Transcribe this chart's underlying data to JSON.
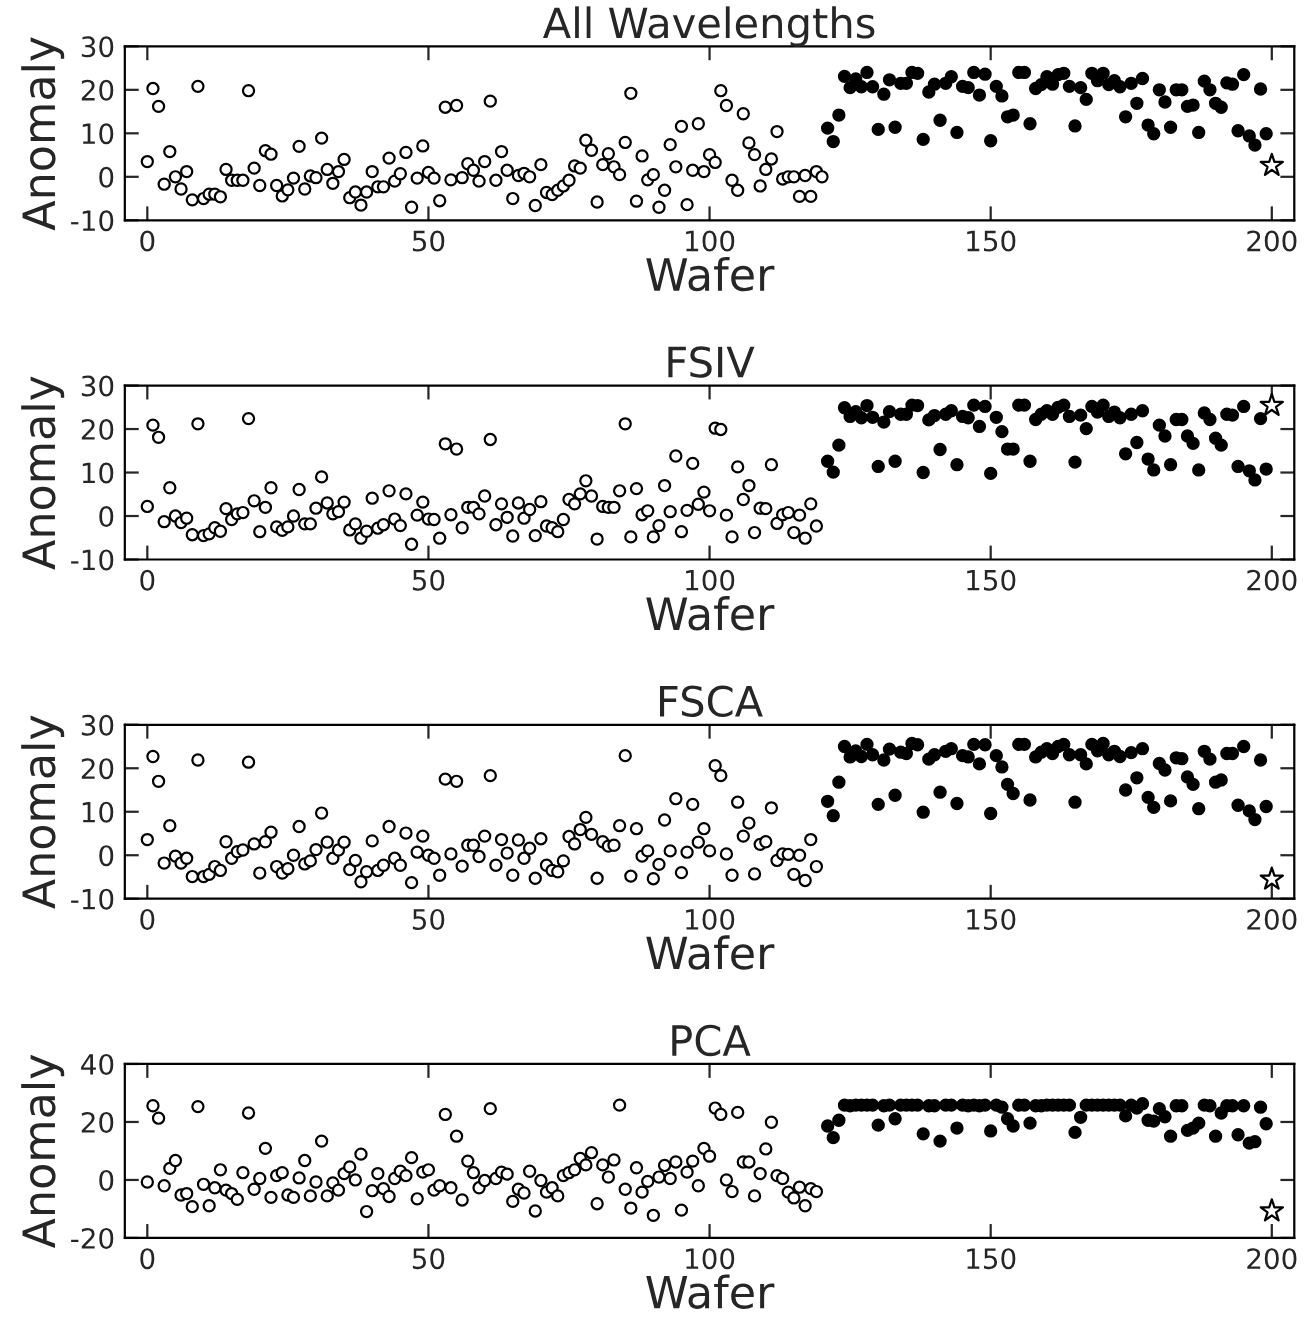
{
  "chart_data": [
    {
      "type": "scatter",
      "title": "All Wavelengths",
      "xlabel": "Wafer",
      "ylabel": "Anomaly",
      "xlim": [
        -4,
        204
      ],
      "xticks": [
        0,
        50,
        100,
        150,
        200
      ],
      "ylim": [
        -10,
        30
      ],
      "yticks": [
        -10,
        0,
        10,
        20,
        30
      ],
      "grid": false,
      "series": [
        {
          "color": "#ffffff",
          "marker": "circle",
          "x": [
            0,
            1,
            2,
            3,
            4,
            5,
            6,
            7,
            8,
            9,
            10,
            11,
            12,
            13,
            14,
            15,
            16,
            17,
            18,
            19,
            20,
            21,
            22,
            23,
            24,
            25,
            26,
            27,
            28,
            29,
            30,
            31,
            32,
            33,
            34,
            35,
            36,
            37,
            38,
            39,
            40,
            41,
            42,
            43,
            44,
            45,
            46,
            47,
            48,
            49,
            50,
            51,
            52,
            53,
            54,
            55,
            56,
            57,
            58,
            59,
            60,
            61,
            62,
            63,
            64,
            65,
            66,
            67,
            68,
            69,
            70,
            71,
            72,
            73,
            74,
            75,
            76,
            77,
            78,
            79,
            80,
            81,
            82,
            83,
            84,
            85,
            86,
            87,
            88,
            89,
            90,
            91,
            92,
            93,
            94,
            95,
            96,
            97,
            98,
            99,
            100,
            101,
            102,
            103,
            104,
            105,
            106,
            107,
            108,
            109,
            110,
            111,
            112,
            113,
            114,
            115,
            116,
            117,
            118,
            119,
            120
          ],
          "values": [
            3.5,
            20.3,
            16.2,
            -1.7,
            5.8,
            0,
            -2.8,
            1.2,
            -5.3,
            20.8,
            -5,
            -4,
            -4,
            -4.6,
            1.7,
            -0.8,
            -0.8,
            -0.8,
            19.8,
            2,
            -2,
            6,
            5.2,
            -2,
            -4.4,
            -3,
            -0.3,
            7,
            -2.8,
            0.2,
            -0.2,
            8.9,
            1.7,
            -1.5,
            1.2,
            4,
            -4.8,
            -3.5,
            -6.5,
            -3.5,
            1.2,
            -2.3,
            -2.3,
            4.3,
            -1,
            0.7,
            5.6,
            -7,
            -0.3,
            7.1,
            1,
            -0.3,
            -5.5,
            16,
            -0.7,
            16.4,
            -0.2,
            3,
            1.5,
            -1,
            3.5,
            17.4,
            -0.8,
            5.8,
            1.5,
            -5,
            0.3,
            0.8,
            0,
            -6.6,
            2.8,
            -3.6,
            -4.1,
            -3.1,
            -2.1,
            -0.8,
            2.5,
            2,
            8.4,
            6.1,
            -5.8,
            2.8,
            5.3,
            2.3,
            0.5,
            7.9,
            19.2,
            -5.6,
            4.8,
            -0.7,
            0.5,
            -7,
            -3.1,
            7.4,
            2.3,
            11.6,
            -6.4,
            1.5,
            12.2,
            1.2,
            5.1,
            3.3,
            19.8,
            16.4,
            -0.8,
            -3.1,
            14.5,
            7.8,
            5.1,
            -2.1,
            1.7,
            4.1,
            10.4,
            -0.5,
            0,
            0,
            -4.5,
            0.3,
            -4.5,
            1.2,
            0
          ]
        },
        {
          "color": "#000000",
          "marker": "circle",
          "x": [
            121,
            122,
            123,
            124,
            125,
            126,
            127,
            128,
            129,
            130,
            131,
            132,
            133,
            134,
            135,
            136,
            137,
            138,
            139,
            140,
            141,
            142,
            143,
            144,
            145,
            146,
            147,
            148,
            149,
            150,
            151,
            152,
            153,
            154,
            155,
            156,
            157,
            158,
            159,
            160,
            161,
            162,
            163,
            164,
            165,
            166,
            167,
            168,
            169,
            170,
            171,
            172,
            173,
            174,
            175,
            176,
            177,
            178,
            179,
            180,
            181,
            182,
            183,
            184,
            185,
            186,
            187,
            188,
            189,
            190,
            191,
            192,
            193,
            194,
            195,
            196,
            197,
            198,
            199
          ],
          "values": [
            11.2,
            8.1,
            14.2,
            23.1,
            20.5,
            22.5,
            20.7,
            24,
            20.7,
            10.9,
            19,
            22.3,
            11.4,
            21.5,
            21.5,
            24,
            23.8,
            8.6,
            19.5,
            21.3,
            13,
            21.5,
            23,
            10.2,
            20.8,
            20.5,
            24,
            18.8,
            23.6,
            8.3,
            20.8,
            18.6,
            13.8,
            14.2,
            24,
            24,
            12.2,
            20.3,
            21.2,
            23,
            21.3,
            23.5,
            23.8,
            20.8,
            11.7,
            20.5,
            17.8,
            23.8,
            22.1,
            23.8,
            21.2,
            22.1,
            20.7,
            13.8,
            21.5,
            16.9,
            22.6,
            11.9,
            9.9,
            20,
            17.2,
            11.4,
            20,
            20,
            16.2,
            16.5,
            10.2,
            22,
            20,
            16.9,
            16,
            21.6,
            21.3,
            10.6,
            23.5,
            9.4,
            7.3,
            20.2,
            9.9
          ]
        },
        {
          "color": "#ffffff",
          "marker": "star",
          "x": [
            200
          ],
          "values": [
            2.6
          ]
        }
      ]
    },
    {
      "type": "scatter",
      "title": "FSIV",
      "xlabel": "Wafer",
      "ylabel": "Anomaly",
      "xlim": [
        -4,
        204
      ],
      "xticks": [
        0,
        50,
        100,
        150,
        200
      ],
      "ylim": [
        -10,
        30
      ],
      "yticks": [
        -10,
        0,
        10,
        20,
        30
      ],
      "grid": false,
      "series": [
        {
          "color": "#ffffff",
          "marker": "circle",
          "x": [
            0,
            1,
            2,
            3,
            4,
            5,
            6,
            7,
            8,
            9,
            10,
            11,
            12,
            13,
            14,
            15,
            16,
            17,
            18,
            19,
            20,
            21,
            22,
            23,
            24,
            25,
            26,
            27,
            28,
            29,
            30,
            31,
            32,
            33,
            34,
            35,
            36,
            37,
            38,
            39,
            40,
            41,
            42,
            43,
            44,
            45,
            46,
            47,
            48,
            49,
            50,
            51,
            52,
            53,
            54,
            55,
            56,
            57,
            58,
            59,
            60,
            61,
            62,
            63,
            64,
            65,
            66,
            67,
            68,
            69,
            70,
            71,
            72,
            73,
            74,
            75,
            76,
            77,
            78,
            79,
            80,
            81,
            82,
            83,
            84,
            85,
            86,
            87,
            88,
            89,
            90,
            91,
            92,
            93,
            94,
            95,
            96,
            97,
            98,
            99,
            100,
            101,
            102,
            103,
            104,
            105,
            106,
            107,
            108,
            109,
            110,
            111,
            112,
            113,
            114,
            115,
            116,
            117,
            118,
            119
          ],
          "values": [
            2.2,
            20.9,
            18.1,
            -1.3,
            6.5,
            0,
            -1.5,
            -0.5,
            -4.3,
            21.2,
            -4.5,
            -4.1,
            -2.7,
            -3.5,
            1.7,
            -0.8,
            0.5,
            0.8,
            22.4,
            3.5,
            -3.6,
            2,
            6.5,
            -2.5,
            -3.3,
            -2.5,
            0,
            6.1,
            -1.8,
            -1.8,
            1.8,
            9,
            3,
            0.5,
            1,
            3.2,
            -3.2,
            -1.8,
            -5.1,
            -3.5,
            4.1,
            -2.8,
            -2,
            5.8,
            -0.7,
            -2.2,
            5.1,
            -6.5,
            0.2,
            3.2,
            -0.7,
            -0.8,
            -5.1,
            16.6,
            0.3,
            15.4,
            -2.7,
            2,
            2,
            0.5,
            4.6,
            17.6,
            -2,
            2.8,
            -0.3,
            -4.6,
            3,
            -0.5,
            1.5,
            -4.5,
            3.3,
            -2.3,
            -2.7,
            -3.6,
            -0.8,
            3.8,
            2.8,
            5.1,
            8.1,
            4.6,
            -5.3,
            2.2,
            2,
            2,
            5.8,
            21.2,
            -4.8,
            6.3,
            0.3,
            1.2,
            -4.8,
            -2.2,
            7,
            1,
            13.8,
            -3.6,
            1.3,
            12.1,
            2.7,
            5.5,
            1.2,
            20.2,
            19.9,
            0.2,
            -4.8,
            11.3,
            3.8,
            7,
            -3.8,
            1.8,
            1.7,
            11.8,
            -1.7,
            0.3,
            0.8,
            -3.8,
            0.2,
            -5.1,
            2.8,
            -2.3
          ]
        },
        {
          "color": "#000000",
          "marker": "circle",
          "x": [
            121,
            122,
            123,
            124,
            125,
            126,
            127,
            128,
            129,
            130,
            131,
            132,
            133,
            134,
            135,
            136,
            137,
            138,
            139,
            140,
            141,
            142,
            143,
            144,
            145,
            146,
            147,
            148,
            149,
            150,
            151,
            152,
            153,
            154,
            155,
            156,
            157,
            158,
            159,
            160,
            161,
            162,
            163,
            164,
            165,
            166,
            167,
            168,
            169,
            170,
            171,
            172,
            173,
            174,
            175,
            176,
            177,
            178,
            179,
            180,
            181,
            182,
            183,
            184,
            185,
            186,
            187,
            188,
            189,
            190,
            191,
            192,
            193,
            194,
            195,
            196,
            197,
            198,
            199
          ],
          "values": [
            12.6,
            10.1,
            16.3,
            24.9,
            22.9,
            24,
            22.6,
            25.4,
            22.7,
            11.4,
            21.6,
            24,
            12.6,
            23.4,
            23.4,
            25.5,
            25.4,
            10,
            22.1,
            23.1,
            15.3,
            23.4,
            24.2,
            11.8,
            22.9,
            22.6,
            25.5,
            20.6,
            25.2,
            9.8,
            22.7,
            19.4,
            15.4,
            15.4,
            25.5,
            25.5,
            12.6,
            22.2,
            23.4,
            24.2,
            23.4,
            25,
            25.5,
            22.9,
            12.4,
            23.2,
            20.1,
            25.2,
            23.9,
            25.5,
            22.9,
            23.9,
            22.6,
            14.3,
            23.4,
            16.9,
            24.2,
            13.1,
            10.6,
            20.9,
            18.4,
            11.8,
            22.2,
            22.2,
            18.4,
            16.7,
            10.6,
            23.7,
            22.2,
            17.9,
            16.3,
            23.4,
            23.2,
            11.4,
            25.2,
            10.4,
            8.3,
            22.4,
            10.8
          ]
        },
        {
          "color": "#ffffff",
          "marker": "star",
          "x": [
            200
          ],
          "values": [
            25.4
          ]
        }
      ]
    },
    {
      "type": "scatter",
      "title": "FSCA",
      "xlabel": "Wafer",
      "ylabel": "Anomaly",
      "xlim": [
        -4,
        204
      ],
      "xticks": [
        0,
        50,
        100,
        150,
        200
      ],
      "ylim": [
        -10,
        30
      ],
      "yticks": [
        -10,
        0,
        10,
        20,
        30
      ],
      "grid": false,
      "series": [
        {
          "color": "#ffffff",
          "marker": "circle",
          "x": [
            0,
            1,
            2,
            3,
            4,
            5,
            6,
            7,
            8,
            9,
            10,
            11,
            12,
            13,
            14,
            15,
            16,
            17,
            18,
            19,
            20,
            21,
            22,
            23,
            24,
            25,
            26,
            27,
            28,
            29,
            30,
            31,
            32,
            33,
            34,
            35,
            36,
            37,
            38,
            39,
            40,
            41,
            42,
            43,
            44,
            45,
            46,
            47,
            48,
            49,
            50,
            51,
            52,
            53,
            54,
            55,
            56,
            57,
            58,
            59,
            60,
            61,
            62,
            63,
            64,
            65,
            66,
            67,
            68,
            69,
            70,
            71,
            72,
            73,
            74,
            75,
            76,
            77,
            78,
            79,
            80,
            81,
            82,
            83,
            84,
            85,
            86,
            87,
            88,
            89,
            90,
            91,
            92,
            93,
            94,
            95,
            96,
            97,
            98,
            99,
            100,
            101,
            102,
            103,
            104,
            105,
            106,
            107,
            108,
            109,
            110,
            111,
            112,
            113,
            114,
            115,
            116,
            117,
            118,
            119
          ],
          "values": [
            3.6,
            22.7,
            17,
            -1.8,
            6.8,
            -0.2,
            -1.8,
            -0.7,
            -4.9,
            21.9,
            -4.9,
            -4.4,
            -2.6,
            -3.5,
            3.1,
            -0.7,
            0.8,
            1.2,
            21.4,
            2.6,
            -4.1,
            3.1,
            5.3,
            -2.6,
            -4.1,
            -3.1,
            0,
            6.6,
            -2,
            -1.3,
            1.3,
            9.7,
            3,
            -0.7,
            1.2,
            3,
            -3.3,
            -1.2,
            -6.1,
            -3.8,
            3.3,
            -3.5,
            -2.3,
            6.6,
            -0.7,
            -2.3,
            5.1,
            -6.3,
            0.7,
            4.4,
            0,
            -0.7,
            -4.6,
            17.5,
            0.3,
            17,
            -2.5,
            2.3,
            2.3,
            -0.3,
            4.4,
            18.3,
            -2.3,
            3.6,
            0.5,
            -4.6,
            3.5,
            -0.7,
            1.6,
            -5.3,
            3.8,
            -2.3,
            -3.5,
            -3.8,
            -1.3,
            4.3,
            2.6,
            5.9,
            8.7,
            4.8,
            -5.3,
            3.1,
            2.1,
            2.3,
            6.8,
            22.9,
            -4.8,
            6.1,
            -0.2,
            1,
            -5.4,
            -2.1,
            8.1,
            1,
            13,
            -4,
            0.7,
            11.7,
            3,
            6.1,
            1,
            20.6,
            18.3,
            0.3,
            -4.6,
            12.2,
            4.4,
            7.4,
            -4.3,
            2.5,
            3.1,
            10.9,
            -1.2,
            0.3,
            0.2,
            -4.4,
            0,
            -5.8,
            3.6,
            -2.6
          ]
        },
        {
          "color": "#000000",
          "marker": "circle",
          "x": [
            121,
            122,
            123,
            124,
            125,
            126,
            127,
            128,
            129,
            130,
            131,
            132,
            133,
            134,
            135,
            136,
            137,
            138,
            139,
            140,
            141,
            142,
            143,
            144,
            145,
            146,
            147,
            148,
            149,
            150,
            151,
            152,
            153,
            154,
            155,
            156,
            157,
            158,
            159,
            160,
            161,
            162,
            163,
            164,
            165,
            166,
            167,
            168,
            169,
            170,
            171,
            172,
            173,
            174,
            175,
            176,
            177,
            178,
            179,
            180,
            181,
            182,
            183,
            184,
            185,
            186,
            187,
            188,
            189,
            190,
            191,
            192,
            193,
            194,
            195,
            196,
            197,
            198,
            199
          ],
          "values": [
            12.4,
            9.1,
            16.8,
            25,
            22.6,
            24,
            22.7,
            25.5,
            23.1,
            11.7,
            21.9,
            24.4,
            13.8,
            23.7,
            23.4,
            25.7,
            25.4,
            9.9,
            22.1,
            23.1,
            14.5,
            23.9,
            24.5,
            11.9,
            22.9,
            22.6,
            25.5,
            21,
            25.4,
            9.6,
            22.9,
            20.3,
            16.3,
            14.2,
            25.5,
            25.5,
            12.7,
            22.6,
            23.7,
            24.5,
            23.4,
            25,
            25.5,
            23.1,
            12.2,
            23.1,
            21,
            25.5,
            24,
            25.7,
            23.1,
            23.9,
            22.7,
            15,
            23.6,
            17.8,
            24.5,
            13.3,
            11,
            21.1,
            19.6,
            12.5,
            22.4,
            22.2,
            18,
            16.3,
            10.7,
            23.9,
            22.1,
            16.8,
            17.3,
            23.4,
            23.4,
            11.5,
            25,
            10.2,
            8.2,
            21.9,
            11.2
          ]
        },
        {
          "color": "#ffffff",
          "marker": "star",
          "x": [
            200
          ],
          "values": [
            -5.5
          ]
        }
      ]
    },
    {
      "type": "scatter",
      "title": "PCA",
      "xlabel": "Wafer",
      "ylabel": "Anomaly",
      "xlim": [
        -4,
        204
      ],
      "xticks": [
        0,
        50,
        100,
        150,
        200
      ],
      "ylim": [
        -20,
        40
      ],
      "yticks": [
        -20,
        0,
        20,
        40
      ],
      "grid": false,
      "series": [
        {
          "color": "#ffffff",
          "marker": "circle",
          "x": [
            0,
            1,
            2,
            3,
            4,
            5,
            6,
            7,
            8,
            9,
            10,
            11,
            12,
            13,
            14,
            15,
            16,
            17,
            18,
            19,
            20,
            21,
            22,
            23,
            24,
            25,
            26,
            27,
            28,
            29,
            30,
            31,
            32,
            33,
            34,
            35,
            36,
            37,
            38,
            39,
            40,
            41,
            42,
            43,
            44,
            45,
            46,
            47,
            48,
            49,
            50,
            51,
            52,
            53,
            54,
            55,
            56,
            57,
            58,
            59,
            60,
            61,
            62,
            63,
            64,
            65,
            66,
            67,
            68,
            69,
            70,
            71,
            72,
            73,
            74,
            75,
            76,
            77,
            78,
            79,
            80,
            81,
            82,
            83,
            84,
            85,
            86,
            87,
            88,
            89,
            90,
            91,
            92,
            93,
            94,
            95,
            96,
            97,
            98,
            99,
            100,
            101,
            102,
            103,
            104,
            105,
            106,
            107,
            108,
            109,
            110,
            111,
            112,
            113,
            114,
            115,
            116,
            117,
            118,
            119
          ],
          "values": [
            -0.7,
            25.6,
            21.3,
            -2,
            4,
            6.7,
            -5.2,
            -4.7,
            -9.2,
            25.3,
            -1.5,
            -8.9,
            -2.7,
            3.5,
            -3.5,
            -4.7,
            -6.7,
            2.5,
            23.1,
            -3.2,
            0.5,
            10.9,
            -6,
            1.5,
            2.5,
            -5.2,
            -6,
            0.7,
            6.7,
            -5.5,
            -0.7,
            13.4,
            -5.5,
            -1,
            -3.5,
            2.2,
            4.5,
            0,
            8.9,
            -10.9,
            -3.7,
            2.2,
            -3,
            -5.7,
            0.5,
            3,
            1.5,
            7.7,
            -6.5,
            2.7,
            3.5,
            -3.5,
            -2,
            22.6,
            -2.7,
            15.1,
            -6.9,
            6.5,
            2.5,
            -2.7,
            -0.2,
            24.6,
            0.5,
            2.7,
            2,
            -7.4,
            -3.2,
            -4.5,
            3,
            -10.7,
            -0.2,
            -4.2,
            -2.7,
            -5.5,
            1.5,
            2.5,
            3.5,
            7.4,
            5.2,
            9.4,
            -8.2,
            5.2,
            1,
            6.9,
            25.8,
            -3.2,
            -9.7,
            4.2,
            -4.2,
            -0.5,
            -12.2,
            1,
            5,
            0.5,
            6.2,
            -10.4,
            2.7,
            6.5,
            -2,
            10.9,
            8.2,
            24.8,
            22.6,
            0,
            -4,
            23.3,
            6.2,
            6.2,
            -5.5,
            2.2,
            10.7,
            19.9,
            1.5,
            0.5,
            -4.2,
            -6.2,
            -2.5,
            -8.9,
            -3,
            -4
          ]
        },
        {
          "color": "#000000",
          "marker": "circle",
          "x": [
            121,
            122,
            123,
            124,
            125,
            126,
            127,
            128,
            129,
            130,
            131,
            132,
            133,
            134,
            135,
            136,
            137,
            138,
            139,
            140,
            141,
            142,
            143,
            144,
            145,
            146,
            147,
            148,
            149,
            150,
            151,
            152,
            153,
            154,
            155,
            156,
            157,
            158,
            159,
            160,
            161,
            162,
            163,
            164,
            165,
            166,
            167,
            168,
            169,
            170,
            171,
            172,
            173,
            174,
            175,
            176,
            177,
            178,
            179,
            180,
            181,
            182,
            183,
            184,
            185,
            186,
            187,
            188,
            189,
            190,
            191,
            192,
            193,
            194,
            195,
            196,
            197,
            198,
            199
          ],
          "values": [
            18.6,
            14.6,
            20.6,
            25.8,
            25.6,
            25.8,
            25.8,
            25.8,
            25.8,
            18.9,
            25.6,
            25.8,
            21.1,
            25.8,
            25.8,
            25.8,
            25.8,
            15.9,
            25.6,
            25.6,
            13.4,
            25.8,
            25.8,
            17.9,
            25.8,
            25.6,
            25.8,
            25.6,
            25.8,
            16.9,
            25.8,
            25.1,
            21.1,
            18.6,
            25.8,
            25.8,
            19.6,
            25.6,
            25.6,
            25.8,
            25.8,
            25.8,
            25.8,
            25.8,
            16.4,
            21.6,
            25.8,
            25.8,
            25.8,
            25.8,
            25.8,
            25.8,
            25.8,
            22.1,
            25.8,
            24.8,
            26.3,
            20.6,
            20.3,
            24.6,
            21.8,
            15.1,
            25.6,
            25.6,
            17.1,
            17.9,
            19.6,
            25.8,
            25.6,
            15.1,
            23.1,
            25.6,
            25.6,
            15.6,
            25.6,
            12.7,
            13.2,
            25.1,
            19.4
          ]
        },
        {
          "color": "#ffffff",
          "marker": "star",
          "x": [
            200
          ],
          "values": [
            -10.7
          ]
        }
      ]
    }
  ]
}
